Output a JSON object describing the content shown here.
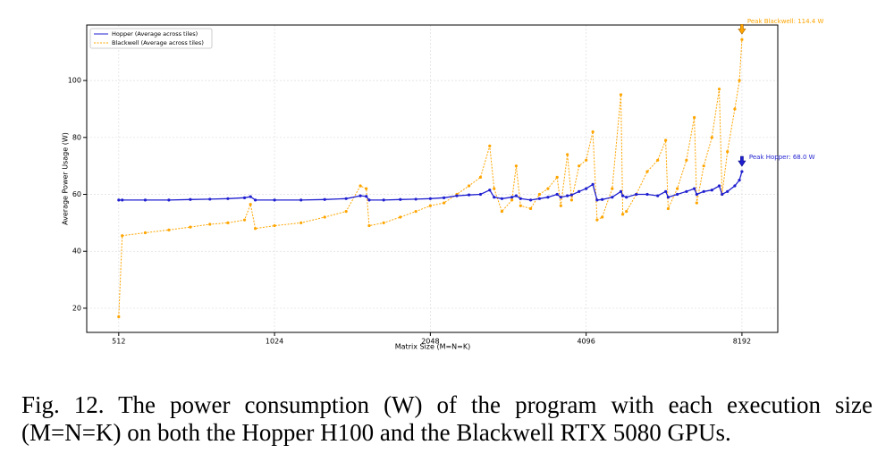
{
  "chart_data": {
    "type": "line",
    "xlabel": "Matrix Size (M=N=K)",
    "ylabel": "Average Power Usage (W)",
    "xscale": "log",
    "xlog_base": 2,
    "xlim": [
      444,
      9608
    ],
    "xticks": [
      512,
      1024,
      2048,
      4096,
      8192
    ],
    "ylim": [
      11.5,
      119.5
    ],
    "yticks": [
      20,
      40,
      60,
      80,
      100
    ],
    "grid": true,
    "legend": "upper left",
    "x": [
      512,
      520,
      576,
      640,
      704,
      768,
      832,
      896,
      920,
      940,
      1024,
      1152,
      1280,
      1408,
      1500,
      1540,
      1560,
      1664,
      1792,
      1920,
      2048,
      2176,
      2304,
      2432,
      2560,
      2667,
      2720,
      2816,
      2944,
      3000,
      3060,
      3200,
      3328,
      3456,
      3600,
      3660,
      3768,
      3840,
      3968,
      4096,
      4220,
      4300,
      4400,
      4600,
      4780,
      4820,
      4900,
      5120,
      5376,
      5632,
      5835,
      5900,
      6144,
      6400,
      6627,
      6700,
      6912,
      7168,
      7405,
      7500,
      7680,
      7936,
      8100,
      8192
    ],
    "series": [
      {
        "name": "Hopper (Average across tiles)",
        "color": "#1f1fd0",
        "linestyle": "solid",
        "values": [
          58,
          58,
          58,
          58,
          58.2,
          58.3,
          58.5,
          58.8,
          59.2,
          58,
          58,
          58,
          58.2,
          58.5,
          59.5,
          59.3,
          58,
          58,
          58.2,
          58.3,
          58.5,
          58.8,
          59.5,
          59.8,
          60,
          61.5,
          59,
          58.5,
          59,
          59.5,
          58.5,
          58,
          58.5,
          59,
          60,
          59,
          59.5,
          59.8,
          61,
          62,
          63.5,
          58,
          58.2,
          59,
          61,
          59.5,
          59,
          60,
          60,
          59.5,
          61,
          59,
          60,
          61,
          62,
          60,
          61,
          61.5,
          63,
          60,
          61,
          63,
          65,
          68
        ]
      },
      {
        "name": "Blackwell (Average across tiles)",
        "color": "#ffa500",
        "linestyle": "dashed",
        "values": [
          17,
          45.5,
          46.5,
          47.5,
          48.5,
          49.5,
          50,
          51,
          56.5,
          48,
          49,
          50,
          52,
          54,
          63,
          62,
          49,
          50,
          52,
          54,
          56,
          57,
          60,
          63,
          66,
          77,
          62,
          54,
          58,
          70,
          56,
          55,
          60,
          62,
          66,
          56,
          74,
          58,
          70,
          72,
          82,
          51,
          52,
          62,
          95,
          53,
          54,
          60,
          68,
          72,
          79,
          55,
          62,
          72,
          87,
          57,
          70,
          80,
          97,
          60,
          75,
          90,
          100,
          114.4
        ]
      }
    ],
    "annotations": [
      {
        "text": "Peak Blackwell: 114.4 W",
        "x": 8192,
        "y": 114.4,
        "color": "#ffa500"
      },
      {
        "text": "Peak Hopper: 68.0 W",
        "x": 8192,
        "y": 68,
        "color": "#1f1fd0"
      }
    ],
    "caption": "Fig. 12.  The power consumption (W) of the program with each execution size (M=N=K) on both the Hopper H100 and the Blackwell RTX 5080 GPUs."
  }
}
